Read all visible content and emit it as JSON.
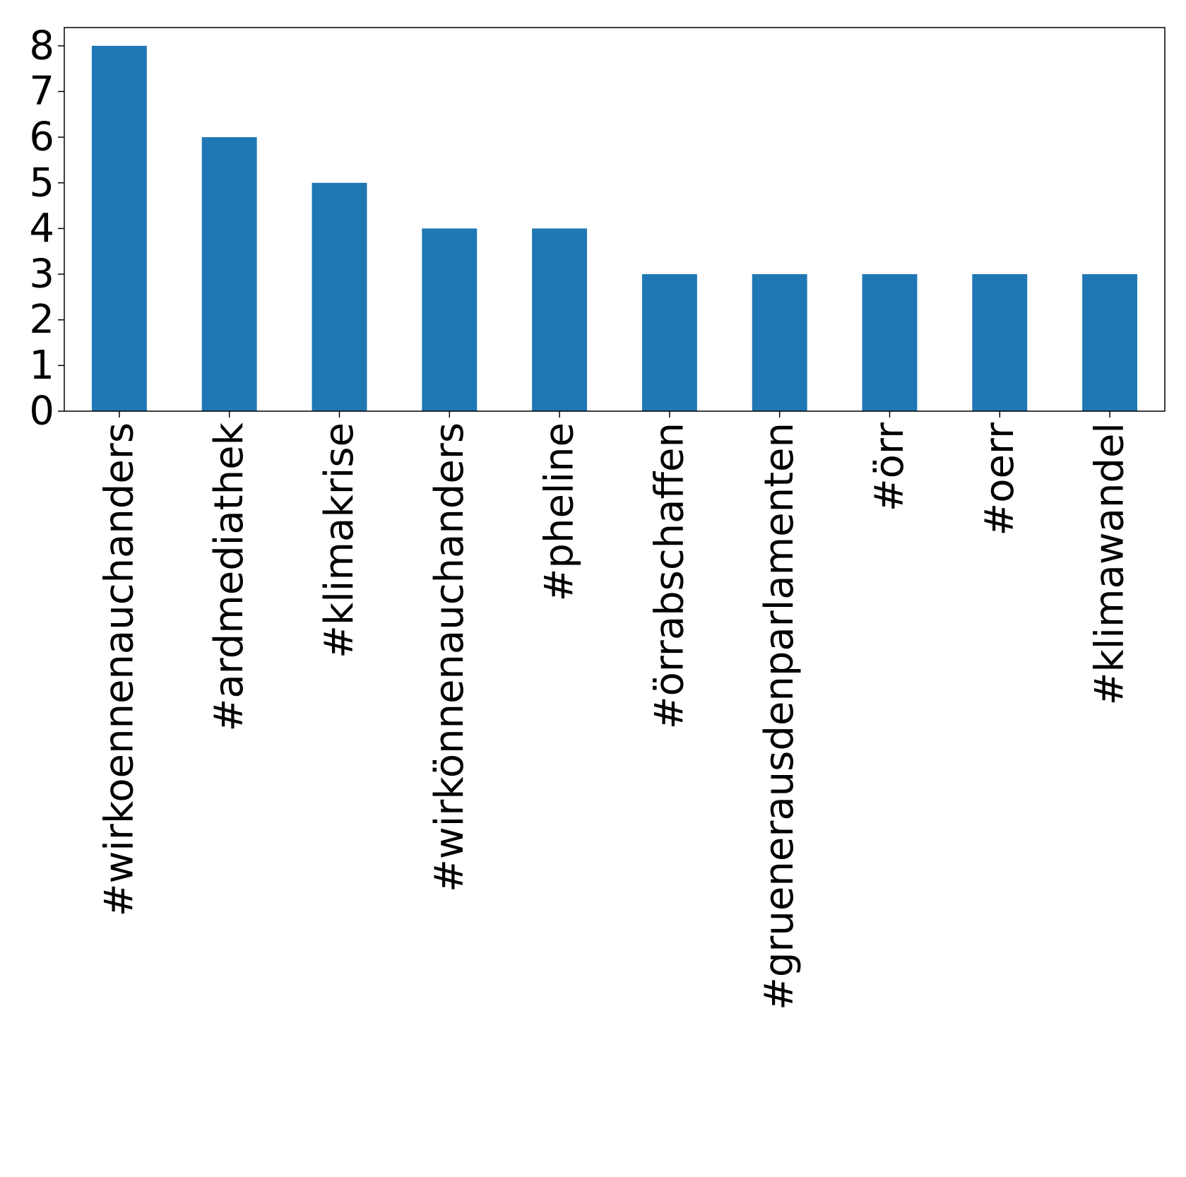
{
  "chart_data": {
    "type": "bar",
    "title": "",
    "xlabel": "",
    "ylabel": "",
    "categories": [
      "#wirkoennenauchanders",
      "#ardmediathek",
      "#klimakrise",
      "#wirkönnenauchanders",
      "#pheline",
      "#örrabschaffen",
      "#gruenerausdenparlamenten",
      "#örr",
      "#oerr",
      "#klimawandel"
    ],
    "values": [
      8,
      6,
      5,
      4,
      4,
      3,
      3,
      3,
      3,
      3
    ],
    "ylim": [
      0,
      8.4
    ],
    "yticks": [
      "0",
      "1",
      "2",
      "3",
      "4",
      "5",
      "6",
      "7",
      "8"
    ],
    "bar_color": "#1f77b4",
    "grid": false,
    "legend": "none"
  }
}
